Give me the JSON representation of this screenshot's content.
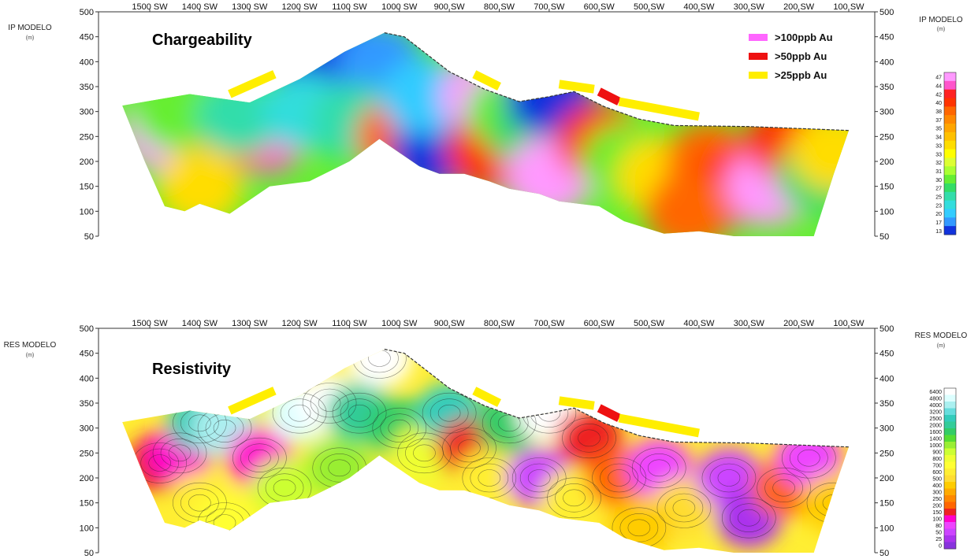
{
  "chart_data": [
    {
      "type": "heatmap",
      "title": "Chargeability",
      "ylabel": "IP MODELO",
      "yunit": "(m)",
      "colorbar_title": "IP MODELO",
      "colorbar_unit": "(m)",
      "x_ticks": [
        "1500 SW",
        "1400 SW",
        "1300 SW",
        "1200 SW",
        "1100 SW",
        "1000 SW",
        "900 SW",
        "800 SW",
        "700 SW",
        "600 SW",
        "500 SW",
        "400 SW",
        "300 SW",
        "200 SW",
        "100 SW"
      ],
      "y_ticks": [
        500,
        450,
        400,
        350,
        300,
        250,
        200,
        150,
        100,
        50
      ],
      "ylim": [
        50,
        500
      ],
      "colorbar_ticks": [
        "47",
        "44",
        "42",
        "40",
        "38",
        "37",
        "35",
        "34",
        "33",
        "33",
        "32",
        "31",
        "30",
        "27",
        "25",
        "23",
        "20",
        "17",
        "13"
      ],
      "colorbar_colors": [
        "#ff99ff",
        "#ff55cc",
        "#ff2222",
        "#ff3300",
        "#ff6600",
        "#ff8800",
        "#ffa500",
        "#ffc000",
        "#ffdd00",
        "#ffff00",
        "#ddff33",
        "#aaff33",
        "#66ee33",
        "#33dd66",
        "#33ddaa",
        "#33dddd",
        "#33ccff",
        "#3399ff",
        "#1133dd"
      ],
      "legend": [
        {
          "label": ">100ppb Au",
          "color": "#ff66ff"
        },
        {
          "label": ">50ppb Au",
          "color": "#ee1111"
        },
        {
          "label": ">25ppb Au",
          "color": "#ffee00"
        }
      ],
      "cells": [
        {
          "x": 1470,
          "y": 260,
          "v": 47
        },
        {
          "x": 1270,
          "y": 255,
          "v": 44
        },
        {
          "x": 1360,
          "y": 240,
          "v": 38
        },
        {
          "x": 1400,
          "y": 150,
          "v": 33
        },
        {
          "x": 1450,
          "y": 300,
          "v": 30
        },
        {
          "x": 1320,
          "y": 290,
          "v": 25
        },
        {
          "x": 1160,
          "y": 380,
          "v": 13
        },
        {
          "x": 1100,
          "y": 410,
          "v": 13
        },
        {
          "x": 1040,
          "y": 400,
          "v": 17
        },
        {
          "x": 1190,
          "y": 300,
          "v": 23
        },
        {
          "x": 1090,
          "y": 280,
          "v": 25
        },
        {
          "x": 1000,
          "y": 250,
          "v": 38
        },
        {
          "x": 930,
          "y": 220,
          "v": 13
        },
        {
          "x": 950,
          "y": 330,
          "v": 20
        },
        {
          "x": 830,
          "y": 330,
          "v": 47
        },
        {
          "x": 820,
          "y": 220,
          "v": 40
        },
        {
          "x": 780,
          "y": 300,
          "v": 30
        },
        {
          "x": 730,
          "y": 250,
          "v": 27
        },
        {
          "x": 700,
          "y": 170,
          "v": 47
        },
        {
          "x": 700,
          "y": 330,
          "v": 13
        },
        {
          "x": 600,
          "y": 240,
          "v": 40
        },
        {
          "x": 550,
          "y": 200,
          "v": 30
        },
        {
          "x": 480,
          "y": 170,
          "v": 33
        },
        {
          "x": 380,
          "y": 200,
          "v": 38
        },
        {
          "x": 330,
          "y": 150,
          "v": 40
        },
        {
          "x": 260,
          "y": 150,
          "v": 47
        },
        {
          "x": 220,
          "y": 240,
          "v": 40
        },
        {
          "x": 160,
          "y": 170,
          "v": 27
        },
        {
          "x": 130,
          "y": 220,
          "v": 33
        },
        {
          "x": 420,
          "y": 100,
          "v": 38
        }
      ]
    },
    {
      "type": "heatmap",
      "title": "Resistivity",
      "ylabel": "RES MODELO",
      "yunit": "(m)",
      "colorbar_title": "RES MODELO",
      "colorbar_unit": "(m)",
      "x_ticks": [
        "1500 SW",
        "1400 SW",
        "1300 SW",
        "1200 SW",
        "1100 SW",
        "1000 SW",
        "900 SW",
        "800 SW",
        "700 SW",
        "600 SW",
        "500 SW",
        "400 SW",
        "300 SW",
        "200 SW",
        "100 SW"
      ],
      "y_ticks": [
        500,
        450,
        400,
        350,
        300,
        250,
        200,
        150,
        100,
        50
      ],
      "ylim": [
        50,
        500
      ],
      "colorbar_ticks": [
        "6400",
        "4800",
        "4000",
        "3200",
        "2500",
        "2000",
        "1600",
        "1400",
        "1000",
        "900",
        "800",
        "700",
        "600",
        "500",
        "400",
        "300",
        "250",
        "200",
        "150",
        "100",
        "80",
        "50",
        "25",
        "0"
      ],
      "colorbar_colors": [
        "#ffffff",
        "#ddffff",
        "#aaf0f0",
        "#66dddd",
        "#33ccbb",
        "#33cc99",
        "#33cc66",
        "#55dd33",
        "#99ee33",
        "#ccff33",
        "#eeff33",
        "#ffff33",
        "#ffee33",
        "#ffdd33",
        "#ffcc00",
        "#ffaa00",
        "#ff8800",
        "#ff6600",
        "#ee2222",
        "#ff00cc",
        "#ee44ff",
        "#cc44ff",
        "#aa33ee",
        "#8833dd"
      ],
      "cells": [
        {
          "x": 1480,
          "y": 230,
          "v": 150
        },
        {
          "x": 1440,
          "y": 250,
          "v": 100
        },
        {
          "x": 1400,
          "y": 310,
          "v": 2500
        },
        {
          "x": 1350,
          "y": 300,
          "v": 4000
        },
        {
          "x": 1280,
          "y": 240,
          "v": 100
        },
        {
          "x": 1400,
          "y": 150,
          "v": 600
        },
        {
          "x": 1350,
          "y": 110,
          "v": 700
        },
        {
          "x": 1230,
          "y": 180,
          "v": 900
        },
        {
          "x": 1200,
          "y": 330,
          "v": 4800
        },
        {
          "x": 1140,
          "y": 350,
          "v": 6400
        },
        {
          "x": 1080,
          "y": 330,
          "v": 2000
        },
        {
          "x": 1040,
          "y": 440,
          "v": 6400
        },
        {
          "x": 1000,
          "y": 300,
          "v": 1600
        },
        {
          "x": 1120,
          "y": 220,
          "v": 1000
        },
        {
          "x": 950,
          "y": 250,
          "v": 800
        },
        {
          "x": 900,
          "y": 330,
          "v": 2500
        },
        {
          "x": 860,
          "y": 260,
          "v": 150
        },
        {
          "x": 820,
          "y": 200,
          "v": 600
        },
        {
          "x": 780,
          "y": 310,
          "v": 1600
        },
        {
          "x": 700,
          "y": 330,
          "v": 6400
        },
        {
          "x": 720,
          "y": 200,
          "v": 50
        },
        {
          "x": 650,
          "y": 160,
          "v": 600
        },
        {
          "x": 620,
          "y": 280,
          "v": 150
        },
        {
          "x": 560,
          "y": 200,
          "v": 200
        },
        {
          "x": 480,
          "y": 220,
          "v": 80
        },
        {
          "x": 430,
          "y": 140,
          "v": 500
        },
        {
          "x": 340,
          "y": 200,
          "v": 50
        },
        {
          "x": 300,
          "y": 120,
          "v": 25
        },
        {
          "x": 230,
          "y": 180,
          "v": 200
        },
        {
          "x": 180,
          "y": 240,
          "v": 80
        },
        {
          "x": 130,
          "y": 150,
          "v": 400
        },
        {
          "x": 520,
          "y": 100,
          "v": 400
        }
      ]
    }
  ]
}
